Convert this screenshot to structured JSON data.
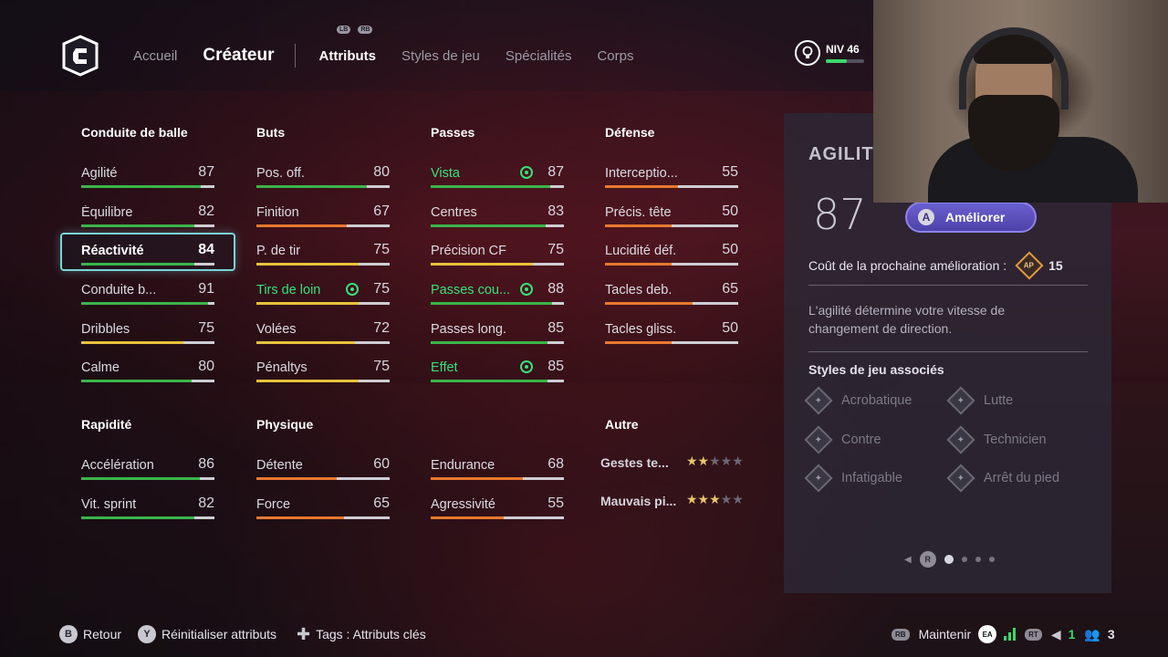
{
  "nav": {
    "home": "Accueil",
    "creator": "Créateur",
    "tabs": [
      "Attributs",
      "Styles de jeu",
      "Spécialités",
      "Corps"
    ],
    "bumper_left": "LB",
    "bumper_right": "RB"
  },
  "level": {
    "label": "NIV 46",
    "progress": 0.55
  },
  "columns": {
    "ball_control": "Conduite de balle",
    "goals": "Buts",
    "passes": "Passes",
    "defense": "Défense",
    "pace": "Rapidité",
    "physical": "Physique",
    "other": "Autre"
  },
  "attributes": {
    "agility": {
      "name": "Agilité",
      "value": "87"
    },
    "balance": {
      "name": "Équilibre",
      "value": "82"
    },
    "reactions": {
      "name": "Réactivité",
      "value": "84"
    },
    "dribble_control": {
      "name": "Conduite b...",
      "value": "91"
    },
    "dribbling": {
      "name": "Dribbles",
      "value": "75"
    },
    "composure": {
      "name": "Calme",
      "value": "80"
    },
    "positioning": {
      "name": "Pos. off.",
      "value": "80"
    },
    "finishing": {
      "name": "Finition",
      "value": "67"
    },
    "shot_power": {
      "name": "P. de tir",
      "value": "75"
    },
    "long_shots": {
      "name": "Tirs de loin",
      "value": "75"
    },
    "volleys": {
      "name": "Volées",
      "value": "72"
    },
    "penalties": {
      "name": "Pénaltys",
      "value": "75"
    },
    "vision": {
      "name": "Vista",
      "value": "87"
    },
    "crossing": {
      "name": "Centres",
      "value": "83"
    },
    "fk_accuracy": {
      "name": "Précision CF",
      "value": "75"
    },
    "short_pass": {
      "name": "Passes cou...",
      "value": "88"
    },
    "long_pass": {
      "name": "Passes long.",
      "value": "85"
    },
    "curve": {
      "name": "Effet",
      "value": "85"
    },
    "interceptions": {
      "name": "Interceptio...",
      "value": "55"
    },
    "heading": {
      "name": "Précis. tête",
      "value": "50"
    },
    "def_awareness": {
      "name": "Lucidité déf.",
      "value": "50"
    },
    "standing_tackle": {
      "name": "Tacles deb.",
      "value": "65"
    },
    "sliding_tackle": {
      "name": "Tacles gliss.",
      "value": "50"
    },
    "acceleration": {
      "name": "Accélération",
      "value": "86"
    },
    "sprint_speed": {
      "name": "Vit. sprint",
      "value": "82"
    },
    "jumping": {
      "name": "Détente",
      "value": "60"
    },
    "strength": {
      "name": "Force",
      "value": "65"
    },
    "stamina": {
      "name": "Endurance",
      "value": "68"
    },
    "aggression": {
      "name": "Agressivité",
      "value": "55"
    }
  },
  "other": {
    "skill_moves": {
      "name": "Gestes te...",
      "stars": 2,
      "max": 5
    },
    "weak_foot": {
      "name": "Mauvais pi...",
      "stars": 3,
      "max": 5
    }
  },
  "panel": {
    "title": "AGILITÉ",
    "value": "87",
    "improve_key": "A",
    "improve_label": "Améliorer",
    "cost_label": "Coût de la prochaine amélioration :",
    "cost_icon": "AP",
    "cost_value": "15",
    "description": "L'agilité détermine votre vitesse de changement de direction.",
    "styles_title": "Styles de jeu associés",
    "styles": [
      "Acrobatique",
      "Lutte",
      "Contre",
      "Technicien",
      "Infatigable",
      "Arrêt du pied"
    ],
    "pager_key": "R"
  },
  "footer": {
    "back_key": "B",
    "back_label": "Retour",
    "reset_key": "Y",
    "reset_label": "Réinitialiser attributs",
    "tags_label": "Tags : Attributs clés",
    "hold_key": "RB",
    "hold_label": "Maintenir",
    "ea_label": "EA",
    "rt_key": "RT",
    "count_a": "1",
    "count_b": "3"
  },
  "colors": {
    "green": "#38e07a",
    "orange": "#e8782e",
    "yellow": "#e8c23a",
    "selection": "#7ad3d6",
    "accent_button": "#5a4fc0"
  }
}
